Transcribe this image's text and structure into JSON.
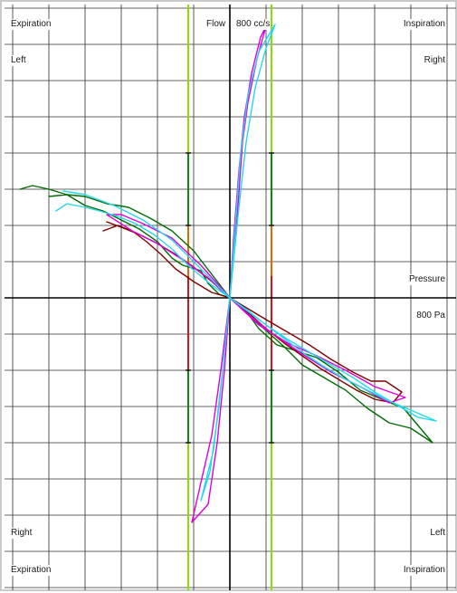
{
  "corner_labels": {
    "top_left_1": "Expiration",
    "top_left_2": "Left",
    "top_right_1": "Inspiration",
    "top_right_2": "Right",
    "bottom_left_1": "Right",
    "bottom_left_2": "Expiration",
    "bottom_right_1": "Left",
    "bottom_right_2": "Inspiration"
  },
  "chart_data": {
    "type": "line",
    "y_axis_name": "Flow",
    "y_scale_label": "800 cc/s",
    "x_axis_name": "Pressure",
    "x_scale_label": "800 Pa",
    "grid": true,
    "xlim": [
      -5.9,
      5.9
    ],
    "ylim": [
      -7.5,
      7.5
    ],
    "reference_lines_x": [
      -1.15,
      1.15
    ],
    "reference_color": "#88e000",
    "series": [
      {
        "color": "#006b00",
        "points": [
          [
            -5.8,
            3.0
          ],
          [
            -5.45,
            3.1
          ],
          [
            -5.0,
            3.0
          ],
          [
            -4.5,
            2.85
          ],
          [
            -4.0,
            2.55
          ],
          [
            -3.5,
            2.4
          ],
          [
            -3.0,
            2.15
          ],
          [
            -2.5,
            1.9
          ],
          [
            -2.0,
            1.55
          ],
          [
            -1.6,
            1.1
          ],
          [
            -1.3,
            0.9
          ],
          [
            -0.8,
            0.75
          ],
          [
            -0.6,
            0.4
          ],
          [
            -0.3,
            0.1
          ],
          [
            0.0,
            0.0
          ],
          [
            0.4,
            -0.3
          ],
          [
            0.8,
            -0.85
          ],
          [
            1.3,
            -1.3
          ],
          [
            1.8,
            -1.45
          ],
          [
            2.4,
            -1.65
          ],
          [
            3.0,
            -2.05
          ],
          [
            3.6,
            -2.55
          ],
          [
            4.2,
            -2.8
          ],
          [
            4.8,
            -3.05
          ],
          [
            5.6,
            -4.0
          ],
          [
            5.0,
            -3.6
          ],
          [
            4.4,
            -3.45
          ],
          [
            3.8,
            -3.05
          ],
          [
            3.2,
            -2.55
          ],
          [
            2.6,
            -2.2
          ],
          [
            2.0,
            -1.85
          ],
          [
            1.5,
            -1.35
          ],
          [
            1.0,
            -0.9
          ],
          [
            0.5,
            -0.45
          ],
          [
            0.0,
            0.0
          ],
          [
            -0.5,
            0.65
          ],
          [
            -1.0,
            1.3
          ],
          [
            -1.6,
            1.85
          ],
          [
            -2.2,
            2.2
          ],
          [
            -2.8,
            2.5
          ],
          [
            -3.4,
            2.6
          ],
          [
            -4.0,
            2.8
          ],
          [
            -4.5,
            2.85
          ],
          [
            -5.0,
            2.8
          ]
        ]
      },
      {
        "color": "#800000",
        "points": [
          [
            -3.5,
            1.85
          ],
          [
            -3.1,
            2.0
          ],
          [
            -2.7,
            1.85
          ],
          [
            -2.3,
            1.55
          ],
          [
            -1.9,
            1.2
          ],
          [
            -1.5,
            0.8
          ],
          [
            -1.0,
            0.45
          ],
          [
            -0.5,
            0.15
          ],
          [
            0.0,
            0.0
          ],
          [
            0.5,
            -0.3
          ],
          [
            1.0,
            -0.6
          ],
          [
            1.6,
            -0.95
          ],
          [
            2.2,
            -1.3
          ],
          [
            2.8,
            -1.7
          ],
          [
            3.4,
            -2.05
          ],
          [
            3.9,
            -2.3
          ],
          [
            4.3,
            -2.3
          ],
          [
            4.75,
            -2.6
          ],
          [
            4.5,
            -2.9
          ],
          [
            4.0,
            -2.8
          ],
          [
            3.5,
            -2.55
          ],
          [
            3.0,
            -2.25
          ],
          [
            2.5,
            -1.95
          ],
          [
            2.0,
            -1.6
          ],
          [
            1.5,
            -1.25
          ],
          [
            1.0,
            -0.85
          ],
          [
            0.5,
            -0.4
          ],
          [
            0.0,
            0.0
          ],
          [
            -0.5,
            0.45
          ],
          [
            -1.0,
            0.85
          ],
          [
            -1.5,
            1.2
          ],
          [
            -2.0,
            1.5
          ],
          [
            -2.5,
            1.75
          ],
          [
            -3.0,
            1.95
          ],
          [
            -3.4,
            2.1
          ]
        ]
      },
      {
        "color": "#dd00dd",
        "points": [
          [
            0.0,
            0.0
          ],
          [
            0.2,
            2.2
          ],
          [
            0.35,
            4.3
          ],
          [
            0.5,
            5.4
          ],
          [
            0.75,
            6.6
          ],
          [
            1.0,
            7.5
          ],
          [
            0.85,
            7.2
          ],
          [
            0.6,
            6.2
          ],
          [
            0.4,
            5.0
          ],
          [
            0.25,
            3.5
          ],
          [
            0.1,
            1.6
          ],
          [
            0.0,
            0.0
          ],
          [
            -0.15,
            -2.0
          ],
          [
            -0.35,
            -4.0
          ],
          [
            -0.6,
            -5.7
          ],
          [
            -1.05,
            -6.2
          ],
          [
            -0.8,
            -5.1
          ],
          [
            -0.5,
            -3.8
          ],
          [
            -0.25,
            -2.0
          ],
          [
            0.0,
            0.0
          ],
          [
            -0.6,
            0.55
          ],
          [
            -1.3,
            1.05
          ],
          [
            -2.0,
            1.5
          ],
          [
            -2.7,
            1.85
          ],
          [
            -3.4,
            2.3
          ],
          [
            -3.0,
            2.3
          ],
          [
            -2.4,
            2.05
          ],
          [
            -1.6,
            1.65
          ],
          [
            -0.8,
            0.9
          ],
          [
            0.0,
            0.0
          ],
          [
            0.8,
            -0.75
          ],
          [
            1.6,
            -1.25
          ],
          [
            2.4,
            -1.6
          ],
          [
            3.2,
            -2.0
          ],
          [
            4.0,
            -2.45
          ],
          [
            4.85,
            -2.75
          ],
          [
            4.4,
            -2.9
          ],
          [
            3.6,
            -2.45
          ],
          [
            2.8,
            -2.05
          ],
          [
            2.0,
            -1.55
          ],
          [
            1.2,
            -1.0
          ],
          [
            0.5,
            -0.45
          ],
          [
            0.0,
            0.0
          ]
        ]
      },
      {
        "color": "#22d8ee",
        "points": [
          [
            -4.8,
            2.4
          ],
          [
            -4.5,
            2.6
          ],
          [
            -4.0,
            2.5
          ],
          [
            -3.6,
            2.4
          ],
          [
            -3.1,
            2.25
          ],
          [
            -2.6,
            2.05
          ],
          [
            -2.1,
            1.75
          ],
          [
            -1.6,
            1.35
          ],
          [
            -1.1,
            0.85
          ],
          [
            -0.5,
            0.35
          ],
          [
            0.0,
            0.0
          ],
          [
            0.5,
            -0.35
          ],
          [
            1.0,
            -0.75
          ],
          [
            1.6,
            -1.15
          ],
          [
            2.2,
            -1.5
          ],
          [
            2.8,
            -1.85
          ],
          [
            3.4,
            -2.2
          ],
          [
            4.0,
            -2.6
          ],
          [
            4.6,
            -2.95
          ],
          [
            5.2,
            -3.3
          ],
          [
            5.7,
            -3.4
          ],
          [
            5.0,
            -3.1
          ],
          [
            4.4,
            -2.85
          ],
          [
            3.8,
            -2.55
          ],
          [
            3.2,
            -2.25
          ],
          [
            2.6,
            -1.9
          ],
          [
            2.0,
            -1.5
          ],
          [
            1.4,
            -1.05
          ],
          [
            0.8,
            -0.6
          ],
          [
            0.0,
            0.0
          ],
          [
            0.15,
            2.0
          ],
          [
            0.3,
            4.0
          ],
          [
            0.5,
            5.6
          ],
          [
            0.8,
            6.8
          ],
          [
            1.25,
            7.55
          ],
          [
            1.0,
            6.9
          ],
          [
            0.7,
            5.8
          ],
          [
            0.45,
            4.3
          ],
          [
            0.25,
            2.5
          ],
          [
            0.0,
            0.0
          ],
          [
            -0.2,
            -2.0
          ],
          [
            -0.45,
            -4.2
          ],
          [
            -0.8,
            -5.6
          ],
          [
            -0.55,
            -4.8
          ],
          [
            -0.3,
            -3.0
          ],
          [
            0.0,
            0.0
          ],
          [
            -0.8,
            0.8
          ],
          [
            -1.6,
            1.6
          ],
          [
            -2.4,
            2.15
          ],
          [
            -3.2,
            2.55
          ],
          [
            -4.0,
            2.85
          ],
          [
            -4.6,
            2.95
          ]
        ]
      }
    ]
  }
}
